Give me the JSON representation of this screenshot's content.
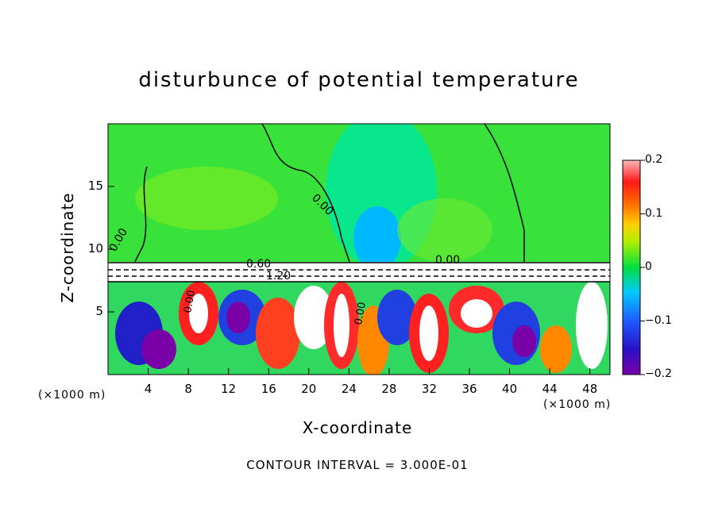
{
  "chart_data": {
    "type": "heatmap",
    "title": "disturbunce of potential temperature",
    "xlabel": "X-coordinate",
    "ylabel": "Z-coordinate",
    "x_unit": "(×1000 m)",
    "z_unit": "(×1000 m)",
    "x_ticks": [
      4,
      8,
      12,
      16,
      20,
      24,
      28,
      32,
      36,
      40,
      44,
      48
    ],
    "y_ticks": [
      5,
      10,
      15
    ],
    "xlim": [
      0,
      50
    ],
    "ylim": [
      0,
      20
    ],
    "colorbar": {
      "ticks": [
        "0.2",
        "0.1",
        "0",
        "−0.1",
        "−0.2"
      ],
      "values": [
        0.2,
        0.1,
        0,
        -0.1,
        -0.2
      ],
      "range": [
        -0.2,
        0.2
      ]
    },
    "contour_labels": [
      "0.00",
      "0.00",
      "0.60",
      "1.20",
      "0.00",
      "0.00",
      "0.00"
    ],
    "annotation": "CONTOUR INTERVAL = 3.000E-01"
  }
}
